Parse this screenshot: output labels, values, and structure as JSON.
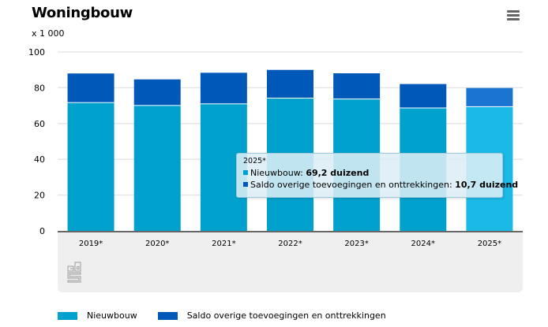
{
  "header": {
    "title": "Woningbouw",
    "unit": "x 1 000",
    "menu_icon": "hamburger-menu-icon"
  },
  "colors": {
    "nieuwbouw": "#00a1cd",
    "saldo": "#0058b8",
    "nieuwbouw_highlight": "#1ab9e6",
    "saldo_highlight": "#1b74d2",
    "grid": "#e6e6e6",
    "axis": "#666666",
    "band": "#efefef"
  },
  "chart_data": {
    "type": "bar",
    "stacked": true,
    "title": "Woningbouw",
    "ylabel": "x 1 000",
    "xlabel": "",
    "ylim": [
      0,
      100
    ],
    "yticks": [
      0,
      20,
      40,
      60,
      80,
      100
    ],
    "grid": true,
    "categories": [
      "2019*",
      "2020*",
      "2021*",
      "2022*",
      "2023*",
      "2024*",
      "2025*"
    ],
    "series": [
      {
        "name": "Nieuwbouw",
        "values": [
          71.5,
          69.9,
          70.8,
          74.0,
          73.5,
          68.5,
          69.2
        ]
      },
      {
        "name": "Saldo overige toevoegingen en onttrekkingen",
        "values": [
          16.5,
          14.8,
          17.6,
          16.0,
          14.6,
          13.6,
          10.7
        ]
      }
    ],
    "highlighted_category": "2025*",
    "legend_position": "bottom-left"
  },
  "tooltip": {
    "title": "2025*",
    "rows": [
      {
        "label": "Nieuwbouw: ",
        "value": "69,2 duizend"
      },
      {
        "label": "Saldo overige toevoegingen en onttrekkingen: ",
        "value": "10,7 duizend"
      }
    ]
  },
  "legend": [
    {
      "label": "Nieuwbouw"
    },
    {
      "label": "Saldo overige toevoegingen en onttrekkingen"
    }
  ],
  "logo": "cbs-logo-icon"
}
